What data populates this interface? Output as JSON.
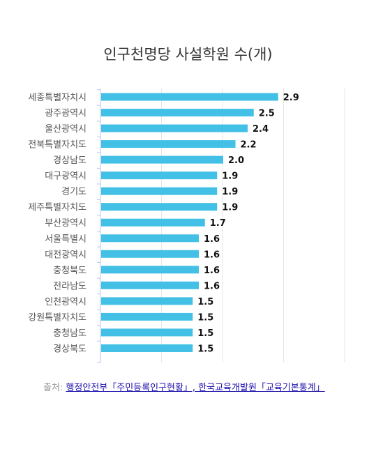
{
  "chart_data": {
    "type": "bar",
    "orientation": "horizontal",
    "title": "인구천명당 사설학원 수(개)",
    "xlabel": "",
    "ylabel": "",
    "xlim": [
      0,
      4
    ],
    "grid": true,
    "legend": "none",
    "bar_color": "#42c0e6",
    "categories": [
      "세종특별자치시",
      "광주광역시",
      "울산광역시",
      "전북특별자치도",
      "경상남도",
      "대구광역시",
      "경기도",
      "제주특별자치도",
      "부산광역시",
      "서울특별시",
      "대전광역시",
      "충청북도",
      "전라남도",
      "인천광역시",
      "강원특별자치도",
      "충청남도",
      "경상북도"
    ],
    "values": [
      2.9,
      2.5,
      2.4,
      2.2,
      2.0,
      1.9,
      1.9,
      1.9,
      1.7,
      1.6,
      1.6,
      1.6,
      1.6,
      1.5,
      1.5,
      1.5,
      1.5
    ],
    "data_labels": [
      "2.9",
      "2.5",
      "2.4",
      "2.2",
      "2.0",
      "1.9",
      "1.9",
      "1.9",
      "1.7",
      "1.6",
      "1.6",
      "1.6",
      "1.6",
      "1.5",
      "1.5",
      "1.5",
      "1.5"
    ]
  },
  "source": {
    "prefix": "출처: ",
    "link_text": "행정안전부「주민등록인구현황」, 한국교육개발원「교육기본통계」"
  },
  "colors": {
    "bar": "#42c0e6",
    "axis": "#b8c6e8",
    "grid": "#e6e6e6",
    "label": "#555555",
    "value": "#111111"
  }
}
